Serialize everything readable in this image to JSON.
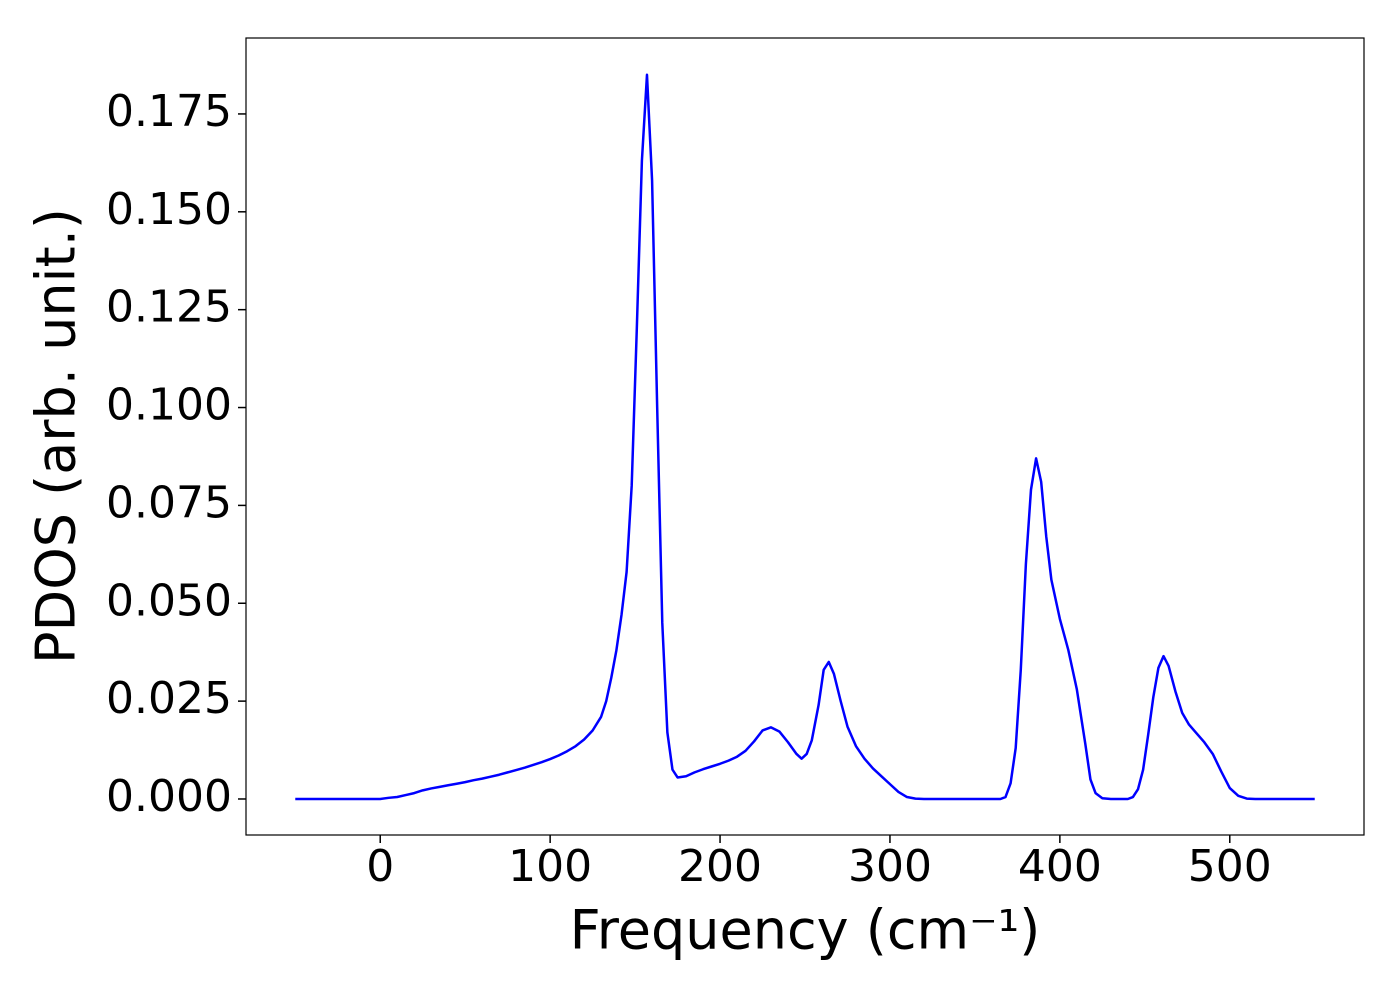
{
  "chart_data": {
    "type": "line",
    "x_label": "Frequency (cm⁻¹)",
    "y_label": "PDOS (arb. unit.)",
    "xlim": [
      -79,
      579
    ],
    "ylim": [
      -0.0092,
      0.1944
    ],
    "xticks": [
      0,
      100,
      200,
      300,
      400,
      500
    ],
    "yticks": [
      {
        "value": 0,
        "label": "0.000"
      },
      {
        "value": 0.025,
        "label": "0.025"
      },
      {
        "value": 0.05,
        "label": "0.050"
      },
      {
        "value": 0.075,
        "label": "0.075"
      },
      {
        "value": 0.1,
        "label": "0.100"
      },
      {
        "value": 0.125,
        "label": "0.125"
      },
      {
        "value": 0.15,
        "label": "0.150"
      },
      {
        "value": 0.175,
        "label": "0.175"
      }
    ],
    "grid": false,
    "series": [
      {
        "color": "#0000ff",
        "x": [
          -50,
          -40,
          -30,
          -20,
          -10,
          0,
          5,
          10,
          15,
          20,
          25,
          30,
          35,
          40,
          45,
          50,
          55,
          60,
          65,
          70,
          75,
          80,
          85,
          90,
          95,
          100,
          105,
          110,
          115,
          120,
          125,
          130,
          133,
          136,
          139,
          142,
          145,
          148,
          151,
          154,
          157,
          160,
          163,
          166,
          169,
          172,
          175,
          180,
          185,
          190,
          195,
          200,
          205,
          210,
          215,
          220,
          225,
          230,
          235,
          240,
          245,
          248,
          251,
          254,
          258,
          261,
          264,
          267,
          271,
          275,
          280,
          285,
          290,
          295,
          300,
          305,
          310,
          315,
          320,
          340,
          365,
          368,
          371,
          374,
          377,
          380,
          383,
          386,
          389,
          392,
          395,
          400,
          405,
          410,
          415,
          418,
          421,
          425,
          430,
          440,
          443,
          446,
          449,
          452,
          455,
          458,
          461,
          464,
          468,
          472,
          476,
          480,
          485,
          490,
          495,
          500,
          505,
          510,
          515,
          530,
          550
        ],
        "values": [
          0,
          0,
          0,
          0,
          0,
          0,
          0.0003,
          0.0005,
          0.001,
          0.0015,
          0.0022,
          0.0027,
          0.0031,
          0.0035,
          0.0039,
          0.0043,
          0.0048,
          0.0052,
          0.0057,
          0.0062,
          0.0068,
          0.0074,
          0.008,
          0.0087,
          0.0094,
          0.0102,
          0.0111,
          0.0122,
          0.0135,
          0.0152,
          0.0175,
          0.021,
          0.025,
          0.031,
          0.038,
          0.047,
          0.058,
          0.08,
          0.12,
          0.163,
          0.185,
          0.158,
          0.1,
          0.045,
          0.017,
          0.0075,
          0.0055,
          0.0058,
          0.0068,
          0.0076,
          0.0083,
          0.009,
          0.0098,
          0.0108,
          0.0123,
          0.0147,
          0.0175,
          0.0183,
          0.0172,
          0.0145,
          0.0115,
          0.0103,
          0.0115,
          0.015,
          0.024,
          0.033,
          0.035,
          0.032,
          0.025,
          0.0185,
          0.0135,
          0.0103,
          0.0078,
          0.0058,
          0.0038,
          0.0018,
          0.0005,
          0.0001,
          0,
          0,
          0,
          0.0005,
          0.004,
          0.013,
          0.033,
          0.06,
          0.079,
          0.087,
          0.081,
          0.067,
          0.056,
          0.046,
          0.038,
          0.028,
          0.014,
          0.005,
          0.0015,
          0.0002,
          0,
          0,
          0.0005,
          0.0025,
          0.0075,
          0.0165,
          0.026,
          0.0335,
          0.0365,
          0.034,
          0.0275,
          0.022,
          0.019,
          0.017,
          0.0145,
          0.0115,
          0.007,
          0.0028,
          0.0008,
          0.0001,
          0,
          0,
          0
        ]
      }
    ]
  }
}
